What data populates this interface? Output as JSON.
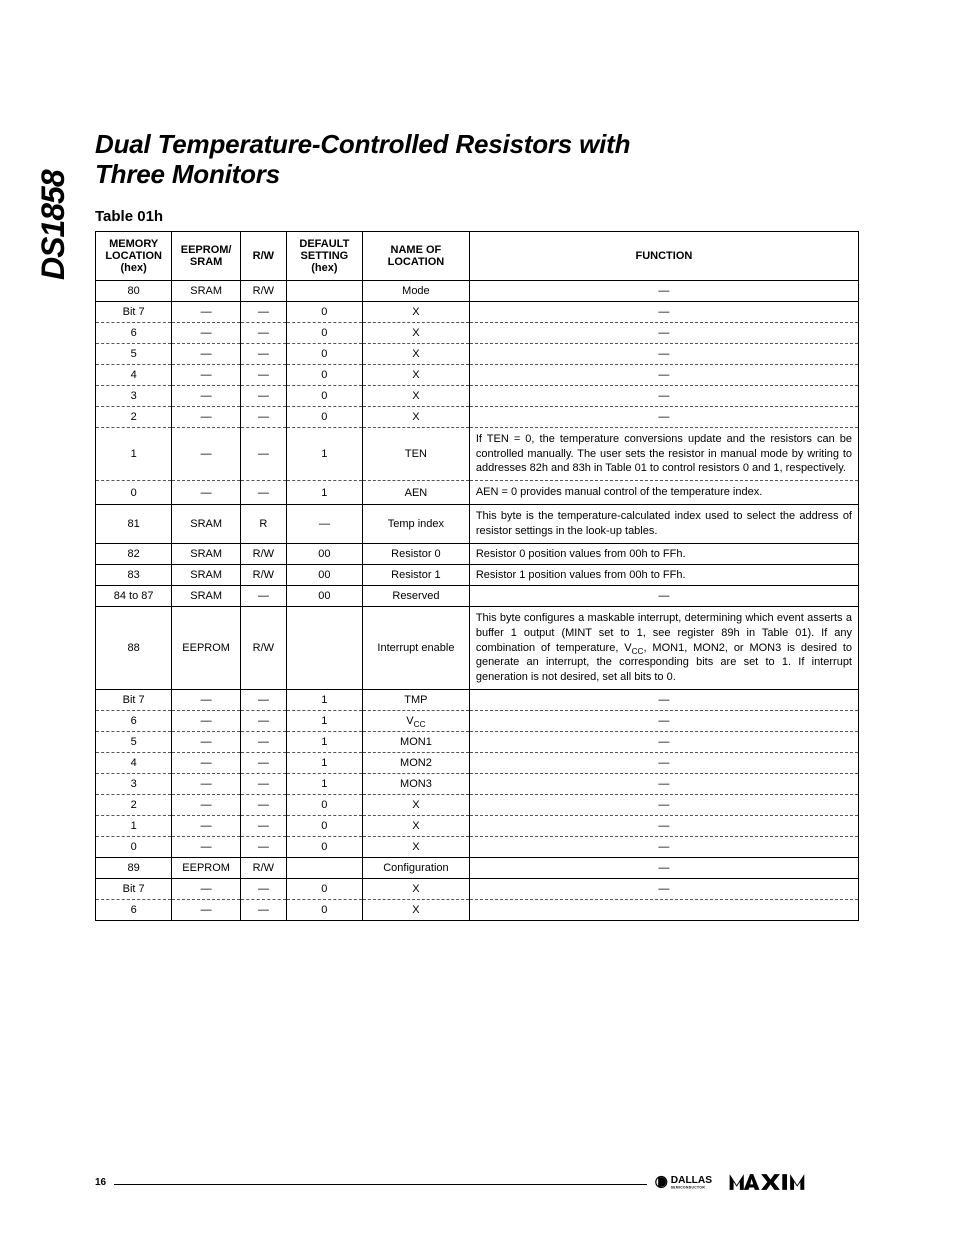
{
  "side_label": "DS1858",
  "title_line1": "Dual Temperature-Controlled Resistors with",
  "title_line2": "Three Monitors",
  "table_caption": "Table 01h",
  "columns": [
    "MEMORY LOCATION (hex)",
    "EEPROM/ SRAM",
    "R/W",
    "DEFAULT SETTING (hex)",
    "NAME OF LOCATION",
    "FUNCTION"
  ],
  "rows": [
    {
      "mem": "80",
      "eep": "SRAM",
      "rw": "R/W",
      "def": "",
      "name": "Mode",
      "func": "—",
      "dashed": false
    },
    {
      "mem": "Bit 7",
      "eep": "—",
      "rw": "—",
      "def": "0",
      "name": "X",
      "func": "—",
      "dashed": true
    },
    {
      "mem": "6",
      "eep": "—",
      "rw": "—",
      "def": "0",
      "name": "X",
      "func": "—",
      "dashed": true,
      "dashed_top": true
    },
    {
      "mem": "5",
      "eep": "—",
      "rw": "—",
      "def": "0",
      "name": "X",
      "func": "—",
      "dashed": true,
      "dashed_top": true
    },
    {
      "mem": "4",
      "eep": "—",
      "rw": "—",
      "def": "0",
      "name": "X",
      "func": "—",
      "dashed": true,
      "dashed_top": true
    },
    {
      "mem": "3",
      "eep": "—",
      "rw": "—",
      "def": "0",
      "name": "X",
      "func": "—",
      "dashed": true,
      "dashed_top": true
    },
    {
      "mem": "2",
      "eep": "—",
      "rw": "—",
      "def": "0",
      "name": "X",
      "func": "—",
      "dashed": true,
      "dashed_top": true
    },
    {
      "mem": "1",
      "eep": "—",
      "rw": "—",
      "def": "1",
      "name": "TEN",
      "func": "If TEN = 0, the temperature conversions update and the resistors can be controlled manually. The user sets the resistor in manual mode by writing to addresses 82h and 83h in Table 01 to control resistors 0 and 1, respectively.",
      "func_justify": true,
      "dashed": true,
      "dashed_top": true
    },
    {
      "mem": "0",
      "eep": "—",
      "rw": "—",
      "def": "1",
      "name": "AEN",
      "func": "AEN = 0 provides manual control of the temperature index.",
      "func_justify": true,
      "dashed_top": true
    },
    {
      "mem": "81",
      "eep": "SRAM",
      "rw": "R",
      "def": "—",
      "name": "Temp index",
      "func": "This byte is the temperature-calculated index used to select the address of resistor settings in the look-up tables.",
      "func_justify": true
    },
    {
      "mem": "82",
      "eep": "SRAM",
      "rw": "R/W",
      "def": "00",
      "name": "Resistor 0",
      "func": "Resistor 0 position values from 00h to FFh.",
      "func_left": true
    },
    {
      "mem": "83",
      "eep": "SRAM",
      "rw": "R/W",
      "def": "00",
      "name": "Resistor 1",
      "func": "Resistor 1 position values from 00h to FFh.",
      "func_left": true
    },
    {
      "mem": "84 to 87",
      "eep": "SRAM",
      "rw": "—",
      "def": "00",
      "name": "Reserved",
      "func": "—"
    },
    {
      "mem": "88",
      "eep": "EEPROM",
      "rw": "R/W",
      "def": "",
      "name": "Interrupt enable",
      "func": "This byte configures a maskable interrupt, determining which event asserts a buffer 1 output (MINT set to 1, see register 89h in Table 01). If any combination of temperature, V__CC__, MON1, MON2, or MON3 is desired to generate an interrupt, the corresponding bits are set to 1. If interrupt generation is not desired, set all bits to 0.",
      "func_justify": true
    },
    {
      "mem": "Bit 7",
      "eep": "—",
      "rw": "—",
      "def": "1",
      "name": "TMP",
      "func": "—",
      "dashed": true
    },
    {
      "mem": "6",
      "eep": "—",
      "rw": "—",
      "def": "1",
      "name": "V__CC__",
      "func": "—",
      "dashed": true,
      "dashed_top": true
    },
    {
      "mem": "5",
      "eep": "—",
      "rw": "—",
      "def": "1",
      "name": "MON1",
      "func": "—",
      "dashed": true,
      "dashed_top": true
    },
    {
      "mem": "4",
      "eep": "—",
      "rw": "—",
      "def": "1",
      "name": "MON2",
      "func": "—",
      "dashed": true,
      "dashed_top": true
    },
    {
      "mem": "3",
      "eep": "—",
      "rw": "—",
      "def": "1",
      "name": "MON3",
      "func": "—",
      "dashed": true,
      "dashed_top": true
    },
    {
      "mem": "2",
      "eep": "—",
      "rw": "—",
      "def": "0",
      "name": "X",
      "func": "—",
      "dashed": true,
      "dashed_top": true
    },
    {
      "mem": "1",
      "eep": "—",
      "rw": "—",
      "def": "0",
      "name": "X",
      "func": "—",
      "dashed": true,
      "dashed_top": true
    },
    {
      "mem": "0",
      "eep": "—",
      "rw": "—",
      "def": "0",
      "name": "X",
      "func": "—",
      "dashed_top": true
    },
    {
      "mem": "89",
      "eep": "EEPROM",
      "rw": "R/W",
      "def": "",
      "name": "Configuration",
      "func": "—"
    },
    {
      "mem": "Bit 7",
      "eep": "—",
      "rw": "—",
      "def": "0",
      "name": "X",
      "func": "—",
      "dashed": true
    },
    {
      "mem": "6",
      "eep": "—",
      "rw": "—",
      "def": "0",
      "name": "X",
      "func": "",
      "dashed_top": true
    }
  ],
  "page_number": "16",
  "logo_text_dallas": "DALLAS",
  "logo_text_semi": "SEMICONDUCTOR"
}
